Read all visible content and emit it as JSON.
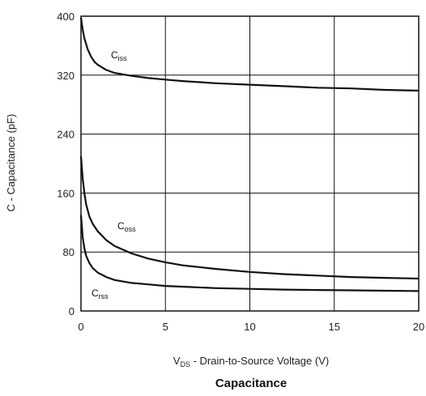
{
  "chart_data": {
    "type": "line",
    "title": "Capacitance",
    "xlabel": {
      "main": "V",
      "sub": "DS",
      "rest": " - Drain-to-Source Voltage (V)"
    },
    "ylabel": "C - Capacitance (pF)",
    "xlim": [
      0,
      20
    ],
    "ylim": [
      0,
      400
    ],
    "x_ticks": [
      "0",
      "5",
      "10",
      "15",
      "20"
    ],
    "y_ticks": [
      "0",
      "80",
      "160",
      "240",
      "320",
      "400"
    ],
    "grid": true,
    "series": [
      {
        "name": "Ciss",
        "label_main": "C",
        "label_sub": "iss",
        "color": "#111111",
        "x": [
          0,
          0.1,
          0.2,
          0.4,
          0.6,
          0.8,
          1,
          1.5,
          2,
          3,
          4,
          5,
          6,
          8,
          10,
          12,
          14,
          16,
          18,
          20
        ],
        "y": [
          398,
          382,
          370,
          355,
          345,
          338,
          334,
          327,
          323,
          319,
          316,
          314,
          312,
          309,
          307,
          305,
          303,
          302,
          300,
          299
        ]
      },
      {
        "name": "Coss",
        "label_main": "C",
        "label_sub": "oss",
        "color": "#111111",
        "x": [
          0,
          0.1,
          0.2,
          0.3,
          0.5,
          0.7,
          1,
          1.5,
          2,
          3,
          4,
          5,
          6,
          8,
          10,
          12,
          14,
          16,
          18,
          20
        ],
        "y": [
          210,
          180,
          160,
          145,
          128,
          118,
          108,
          96,
          88,
          78,
          71,
          66,
          62,
          57,
          53,
          50,
          48,
          46,
          45,
          44
        ]
      },
      {
        "name": "Crss",
        "label_main": "C",
        "label_sub": "rss",
        "color": "#111111",
        "x": [
          0,
          0.1,
          0.2,
          0.3,
          0.5,
          0.7,
          1,
          1.5,
          2,
          3,
          4,
          5,
          6,
          8,
          10,
          12,
          14,
          16,
          18,
          20
        ],
        "y": [
          130,
          100,
          85,
          75,
          65,
          58,
          52,
          46,
          42,
          38,
          36,
          34,
          33,
          31,
          30,
          29,
          28.5,
          28,
          27.5,
          27
        ]
      }
    ]
  }
}
